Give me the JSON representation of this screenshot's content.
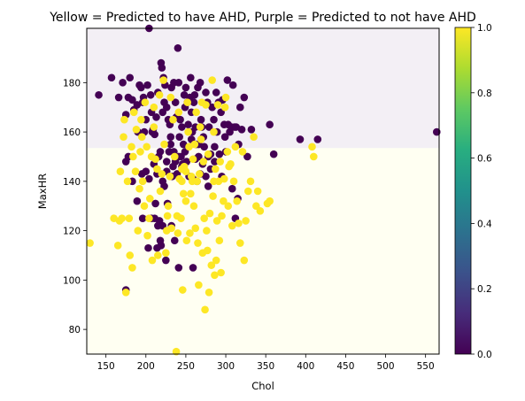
{
  "chart_data": {
    "type": "scatter",
    "title": "Yellow = Predicted to have AHD, Purple = Predicted to not have AHD",
    "xlabel": "Chol",
    "ylabel": "MaxHR",
    "xlim": [
      126,
      567
    ],
    "ylim": [
      70,
      202
    ],
    "xticks": [
      150,
      200,
      250,
      300,
      350,
      400,
      450,
      500,
      550
    ],
    "yticks": [
      80,
      100,
      120,
      140,
      160,
      180
    ],
    "grid": false,
    "colors": {
      "class_1": "#fde725",
      "class_0": "#440154"
    },
    "decision_regions": [
      {
        "label": 1,
        "x_range": [
          126,
          567
        ],
        "y_range": [
          70,
          153.5
        ],
        "color": "#fffff2"
      },
      {
        "label": 0,
        "x_range": [
          126,
          567
        ],
        "y_range": [
          153.5,
          202
        ],
        "color": "#f3eff5"
      }
    ],
    "colorbar": {
      "range": [
        0.0,
        1.0
      ],
      "ticks": [
        "0.0",
        "0.2",
        "0.4",
        "0.6",
        "0.8",
        "1.0"
      ],
      "colormap": "viridis"
    },
    "series": [
      {
        "class": 0,
        "points": [
          [
            141,
            175
          ],
          [
            157,
            182
          ],
          [
            166,
            174
          ],
          [
            171,
            180
          ],
          [
            175,
            167
          ],
          [
            178,
            174
          ],
          [
            180,
            182
          ],
          [
            183,
            173
          ],
          [
            185,
            169
          ],
          [
            189,
            171
          ],
          [
            190,
            160
          ],
          [
            192,
            179
          ],
          [
            194,
            178
          ],
          [
            196,
            172
          ],
          [
            197,
            174
          ],
          [
            198,
            160
          ],
          [
            200,
            165
          ],
          [
            202,
            179
          ],
          [
            204,
            202
          ],
          [
            206,
            175
          ],
          [
            207,
            168
          ],
          [
            209,
            161
          ],
          [
            211,
            159
          ],
          [
            213,
            166
          ],
          [
            215,
            176
          ],
          [
            216,
            150
          ],
          [
            218,
            152
          ],
          [
            219,
            188
          ],
          [
            220,
            186
          ],
          [
            221,
            168
          ],
          [
            222,
            182
          ],
          [
            223,
            172
          ],
          [
            224,
            179
          ],
          [
            226,
            170
          ],
          [
            226,
            148
          ],
          [
            228,
            165
          ],
          [
            230,
            163
          ],
          [
            231,
            155
          ],
          [
            232,
            178
          ],
          [
            234,
            146
          ],
          [
            235,
            180
          ],
          [
            237,
            172
          ],
          [
            238,
            166
          ],
          [
            240,
            194
          ],
          [
            241,
            180
          ],
          [
            242,
            158
          ],
          [
            243,
            165
          ],
          [
            245,
            162
          ],
          [
            246,
            147
          ],
          [
            248,
            175
          ],
          [
            249,
            170
          ],
          [
            250,
            178
          ],
          [
            252,
            172
          ],
          [
            253,
            163
          ],
          [
            255,
            174
          ],
          [
            256,
            182
          ],
          [
            257,
            168
          ],
          [
            258,
            160
          ],
          [
            260,
            172
          ],
          [
            261,
            175
          ],
          [
            262,
            162
          ],
          [
            263,
            155
          ],
          [
            265,
            178
          ],
          [
            266,
            150
          ],
          [
            268,
            180
          ],
          [
            269,
            165
          ],
          [
            270,
            162
          ],
          [
            272,
            158
          ],
          [
            273,
            154
          ],
          [
            275,
            176
          ],
          [
            277,
            172
          ],
          [
            278,
            150
          ],
          [
            279,
            162
          ],
          [
            281,
            145
          ],
          [
            283,
            170
          ],
          [
            285,
            165
          ],
          [
            286,
            148
          ],
          [
            288,
            176
          ],
          [
            289,
            160
          ],
          [
            291,
            172
          ],
          [
            292,
            151
          ],
          [
            294,
            168
          ],
          [
            296,
            173
          ],
          [
            298,
            163
          ],
          [
            299,
            158
          ],
          [
            300,
            152
          ],
          [
            302,
            181
          ],
          [
            303,
            163
          ],
          [
            305,
            160
          ],
          [
            307,
            162
          ],
          [
            309,
            179
          ],
          [
            311,
            162
          ],
          [
            313,
            162
          ],
          [
            316,
            155
          ],
          [
            318,
            170
          ],
          [
            320,
            161
          ],
          [
            323,
            174
          ],
          [
            327,
            150
          ],
          [
            332,
            161
          ],
          [
            355,
            163
          ],
          [
            360,
            151
          ],
          [
            393,
            157
          ],
          [
            415,
            157
          ],
          [
            564,
            160
          ],
          [
            175,
            148
          ],
          [
            178,
            150
          ],
          [
            183,
            140
          ],
          [
            195,
            143
          ],
          [
            200,
            144
          ],
          [
            204,
            141
          ],
          [
            208,
            160
          ],
          [
            210,
            147
          ],
          [
            212,
            131
          ],
          [
            214,
            143
          ],
          [
            215,
            122
          ],
          [
            217,
            124
          ],
          [
            219,
            114
          ],
          [
            221,
            140
          ],
          [
            223,
            138
          ],
          [
            226,
            144
          ],
          [
            227,
            131
          ],
          [
            229,
            152
          ],
          [
            231,
            158
          ],
          [
            233,
            142
          ],
          [
            235,
            152
          ],
          [
            237,
            148
          ],
          [
            239,
            143
          ],
          [
            241,
            150
          ],
          [
            244,
            150
          ],
          [
            245,
            146
          ],
          [
            247,
            155
          ],
          [
            249,
            152
          ],
          [
            251,
            148
          ],
          [
            254,
            142
          ],
          [
            257,
            157
          ],
          [
            259,
            141
          ],
          [
            262,
            149
          ],
          [
            264,
            140
          ],
          [
            266,
            155
          ],
          [
            268,
            143
          ],
          [
            271,
            147
          ],
          [
            275,
            142
          ],
          [
            278,
            138
          ],
          [
            281,
            151
          ],
          [
            286,
            154
          ],
          [
            295,
            142
          ],
          [
            308,
            137
          ],
          [
            312,
            125
          ],
          [
            315,
            133
          ],
          [
            189,
            132
          ],
          [
            196,
            125
          ],
          [
            203,
            113
          ],
          [
            207,
            125
          ],
          [
            211,
            125
          ],
          [
            214,
            113
          ],
          [
            218,
            116
          ],
          [
            221,
            122
          ],
          [
            225,
            108
          ],
          [
            232,
            122
          ],
          [
            236,
            116
          ],
          [
            241,
            105
          ],
          [
            259,
            105
          ],
          [
            175,
            96
          ]
        ]
      },
      {
        "class": 1,
        "points": [
          [
            130,
            115
          ],
          [
            160,
            125
          ],
          [
            165,
            114
          ],
          [
            167,
            124
          ],
          [
            168,
            144
          ],
          [
            172,
            158
          ],
          [
            173,
            165
          ],
          [
            175,
            95
          ],
          [
            177,
            140
          ],
          [
            179,
            125
          ],
          [
            180,
            110
          ],
          [
            182,
            154
          ],
          [
            183,
            105
          ],
          [
            184,
            150
          ],
          [
            185,
            168
          ],
          [
            187,
            144
          ],
          [
            188,
            161
          ],
          [
            190,
            120
          ],
          [
            192,
            137
          ],
          [
            193,
            152
          ],
          [
            195,
            158
          ],
          [
            196,
            140
          ],
          [
            198,
            130
          ],
          [
            199,
            172
          ],
          [
            201,
            154
          ],
          [
            202,
            118
          ],
          [
            204,
            125
          ],
          [
            205,
            133
          ],
          [
            207,
            150
          ],
          [
            208,
            108
          ],
          [
            210,
            162
          ],
          [
            212,
            149
          ],
          [
            214,
            145
          ],
          [
            215,
            110
          ],
          [
            217,
            175
          ],
          [
            218,
            136
          ],
          [
            220,
            143
          ],
          [
            222,
            181
          ],
          [
            223,
            155
          ],
          [
            225,
            111
          ],
          [
            226,
            120
          ],
          [
            227,
            126
          ],
          [
            228,
            130
          ],
          [
            230,
            142
          ],
          [
            231,
            174
          ],
          [
            232,
            121
          ],
          [
            234,
            165
          ],
          [
            236,
            150
          ],
          [
            238,
            71
          ],
          [
            239,
            126
          ],
          [
            240,
            119
          ],
          [
            241,
            168
          ],
          [
            242,
            141
          ],
          [
            244,
            125
          ],
          [
            245,
            140
          ],
          [
            246,
            96
          ],
          [
            247,
            135
          ],
          [
            248,
            146
          ],
          [
            250,
            144
          ],
          [
            251,
            116
          ],
          [
            252,
            172
          ],
          [
            253,
            160
          ],
          [
            254,
            154
          ],
          [
            255,
            119
          ],
          [
            256,
            135
          ],
          [
            257,
            142
          ],
          [
            258,
            140
          ],
          [
            259,
            149
          ],
          [
            260,
            130
          ],
          [
            261,
            155
          ],
          [
            262,
            121
          ],
          [
            263,
            168
          ],
          [
            264,
            140
          ],
          [
            265,
            115
          ],
          [
            266,
            98
          ],
          [
            267,
            143
          ],
          [
            268,
            162
          ],
          [
            269,
            157
          ],
          [
            270,
            172
          ],
          [
            271,
            111
          ],
          [
            272,
            148
          ],
          [
            273,
            125
          ],
          [
            274,
            88
          ],
          [
            275,
            171
          ],
          [
            276,
            120
          ],
          [
            277,
            112
          ],
          [
            278,
            151
          ],
          [
            279,
            95
          ],
          [
            280,
            127
          ],
          [
            282,
            106
          ],
          [
            283,
            181
          ],
          [
            284,
            134
          ],
          [
            285,
            160
          ],
          [
            286,
            102
          ],
          [
            287,
            145
          ],
          [
            288,
            108
          ],
          [
            289,
            124
          ],
          [
            290,
            171
          ],
          [
            291,
            140
          ],
          [
            292,
            116
          ],
          [
            293,
            148
          ],
          [
            294,
            103
          ],
          [
            295,
            126
          ],
          [
            297,
            132
          ],
          [
            299,
            170
          ],
          [
            300,
            174
          ],
          [
            302,
            152
          ],
          [
            303,
            130
          ],
          [
            304,
            146
          ],
          [
            306,
            147
          ],
          [
            308,
            122
          ],
          [
            310,
            140
          ],
          [
            312,
            154
          ],
          [
            314,
            132
          ],
          [
            316,
            123
          ],
          [
            318,
            115
          ],
          [
            321,
            152
          ],
          [
            323,
            108
          ],
          [
            325,
            124
          ],
          [
            328,
            136
          ],
          [
            331,
            140
          ],
          [
            335,
            158
          ],
          [
            338,
            130
          ],
          [
            340,
            136
          ],
          [
            343,
            128
          ],
          [
            352,
            131
          ],
          [
            355,
            132
          ],
          [
            408,
            154
          ],
          [
            410,
            150
          ],
          [
            194,
            165
          ],
          [
            210,
            170
          ],
          [
            245,
            145
          ],
          [
            250,
            132
          ],
          [
            170,
            125
          ],
          [
            298,
            141
          ],
          [
            285,
            140
          ]
        ]
      }
    ]
  }
}
